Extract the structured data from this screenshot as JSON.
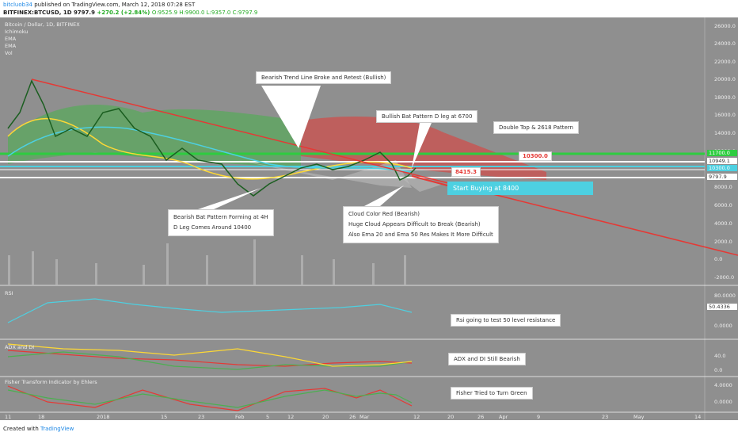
{
  "header": {
    "user": "bitcluob34",
    "published": "published on TradingView.com, March 12, 2018 07:28 EST",
    "symbol": "BITFINEX:BTCUSD, 1D",
    "last": "9797.9",
    "change": "+270.2 (+2.84%)",
    "ohlc": "O:9525.9 H:9900.0 L:9357.0 C:9797.9"
  },
  "legend": [
    "Bitcoin / Dollar, 1D, BITFINEX",
    "Ichimoku",
    "EMA",
    "EMA",
    "Vol"
  ],
  "price_axis": [
    "26000.0",
    "24000.0",
    "22000.0",
    "20000.0",
    "18000.0",
    "16000.0",
    "14000.0",
    "12000.0",
    "8000.0",
    "6000.0",
    "4000.0",
    "2000.0",
    "0.0",
    "-2000.0"
  ],
  "price_labels": [
    "11700.0",
    "10949.1",
    "10300.0",
    "9797.9"
  ],
  "time_axis": [
    "11",
    "18",
    "2018",
    "15",
    "23",
    "Feb",
    "5",
    "12",
    "20",
    "26",
    "Mar",
    "12",
    "20",
    "26",
    "Apr",
    "9",
    "23",
    "May",
    "14"
  ],
  "annotations": {
    "trend": "Bearish Trend Line Broke and Retest (Bullish)",
    "bat": "Bullish Bat Pattern D leg at 6700",
    "double_top": "Double Top & 2618 Pattern",
    "target": "10300.0",
    "level": "8415.3",
    "buy": "Start Buying at 8400",
    "bearish_bat": [
      "Bearish Bat Pattern Forming at 4H",
      "D Leg Comes Around 10400"
    ],
    "cloud": [
      "Cloud Color Red (Bearish)",
      "Huge Cloud Appears Difficult to Break (Bearish)",
      "Also Ema 20 and Ema 50 Res Makes It More Difficult"
    ],
    "rsi": "Rsi going to test 50 level resistance",
    "adx": "ADX and DI Still Bearish",
    "fisher": "Fisher Tried to Turn Green"
  },
  "panes": {
    "rsi": {
      "title": "RSI",
      "axis": [
        "80.0000",
        "50.4336",
        "0.0000"
      ]
    },
    "adx": {
      "title": "ADX and DI",
      "axis": [
        "40.0",
        "0.0"
      ]
    },
    "fisher": {
      "title": "Fisher Transform Indicator by Ehlers",
      "axis": [
        "4.0000",
        "0.0000"
      ]
    }
  },
  "footer": {
    "created": "Created with",
    "brand": "TradingView"
  }
}
